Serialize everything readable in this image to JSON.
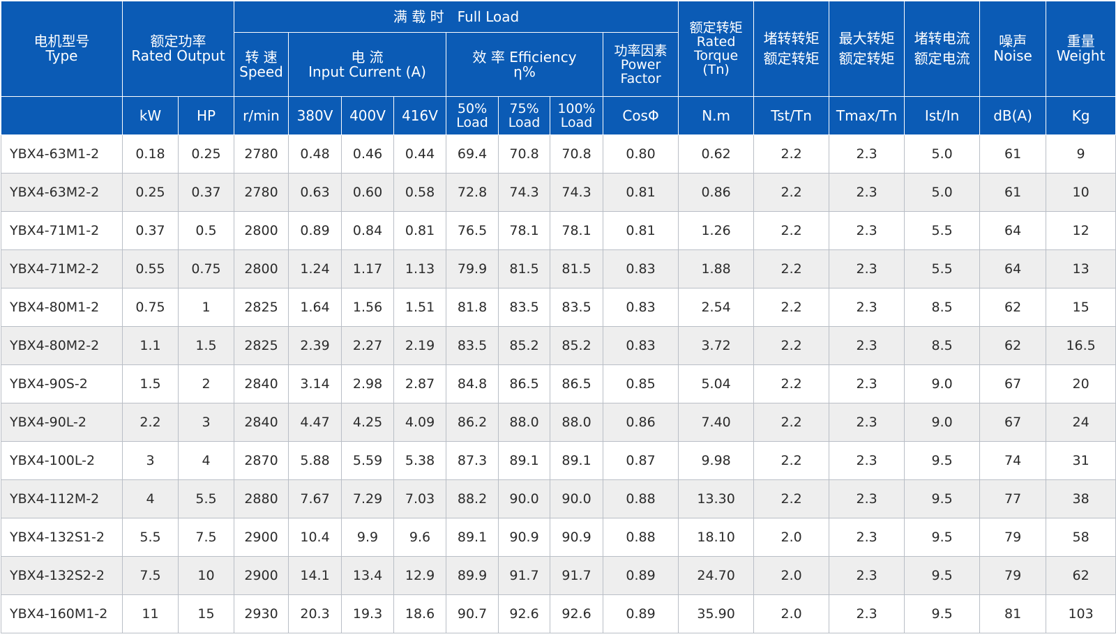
{
  "header": {
    "type": [
      "电机型号",
      "Type"
    ],
    "rated_output": [
      "额定功率",
      "Rated Output"
    ],
    "full_load": "满 载 时   Full Load",
    "speed": [
      "转 速",
      "Speed"
    ],
    "current": [
      "电 流",
      "Input Current (A)"
    ],
    "efficiency": [
      "效 率 Efficiency",
      "η%"
    ],
    "power_factor": [
      "功率因素",
      "Power",
      "Factor"
    ],
    "rated_torque": [
      "额定转矩",
      "Rated",
      "Torque",
      "(Tn)"
    ],
    "locked_torque": [
      "堵转转矩",
      "额定转矩"
    ],
    "max_torque": [
      "最大转矩",
      "额定转矩"
    ],
    "locked_current": [
      "堵转电流",
      "额定电流"
    ],
    "noise": [
      "噪声",
      "Noise"
    ],
    "weight": [
      "重量",
      "Weight"
    ],
    "units": {
      "kw": "kW",
      "hp": "HP",
      "rpm": "r/min",
      "v380": "380V",
      "v400": "400V",
      "v416": "416V",
      "l50": [
        "50%",
        "Load"
      ],
      "l75": [
        "75%",
        "Load"
      ],
      "l100": [
        "100%",
        "Load"
      ],
      "cos": "CosΦ",
      "nm": "N.m",
      "tst": "Tst/Tn",
      "tmax": "Tmax/Tn",
      "ist": "Ist/In",
      "db": "dB(A)",
      "kg": "Kg"
    }
  },
  "rows": [
    [
      "YBX4-63M1-2",
      "0.18",
      "0.25",
      "2780",
      "0.48",
      "0.46",
      "0.44",
      "69.4",
      "70.8",
      "70.8",
      "0.80",
      "0.62",
      "2.2",
      "2.3",
      "5.0",
      "61",
      "9"
    ],
    [
      "YBX4-63M2-2",
      "0.25",
      "0.37",
      "2780",
      "0.63",
      "0.60",
      "0.58",
      "72.8",
      "74.3",
      "74.3",
      "0.81",
      "0.86",
      "2.2",
      "2.3",
      "5.0",
      "61",
      "10"
    ],
    [
      "YBX4-71M1-2",
      "0.37",
      "0.5",
      "2800",
      "0.89",
      "0.84",
      "0.81",
      "76.5",
      "78.1",
      "78.1",
      "0.81",
      "1.26",
      "2.2",
      "2.3",
      "5.5",
      "64",
      "12"
    ],
    [
      "YBX4-71M2-2",
      "0.55",
      "0.75",
      "2800",
      "1.24",
      "1.17",
      "1.13",
      "79.9",
      "81.5",
      "81.5",
      "0.83",
      "1.88",
      "2.2",
      "2.3",
      "5.5",
      "64",
      "13"
    ],
    [
      "YBX4-80M1-2",
      "0.75",
      "1",
      "2825",
      "1.64",
      "1.56",
      "1.51",
      "81.8",
      "83.5",
      "83.5",
      "0.83",
      "2.54",
      "2.2",
      "2.3",
      "8.5",
      "62",
      "15"
    ],
    [
      "YBX4-80M2-2",
      "1.1",
      "1.5",
      "2825",
      "2.39",
      "2.27",
      "2.19",
      "83.5",
      "85.2",
      "85.2",
      "0.83",
      "3.72",
      "2.2",
      "2.3",
      "8.5",
      "62",
      "16.5"
    ],
    [
      "YBX4-90S-2",
      "1.5",
      "2",
      "2840",
      "3.14",
      "2.98",
      "2.87",
      "84.8",
      "86.5",
      "86.5",
      "0.85",
      "5.04",
      "2.2",
      "2.3",
      "9.0",
      "67",
      "20"
    ],
    [
      "YBX4-90L-2",
      "2.2",
      "3",
      "2840",
      "4.47",
      "4.25",
      "4.09",
      "86.2",
      "88.0",
      "88.0",
      "0.86",
      "7.40",
      "2.2",
      "2.3",
      "9.0",
      "67",
      "24"
    ],
    [
      "YBX4-100L-2",
      "3",
      "4",
      "2870",
      "5.88",
      "5.59",
      "5.38",
      "87.3",
      "89.1",
      "89.1",
      "0.87",
      "9.98",
      "2.2",
      "2.3",
      "9.5",
      "74",
      "31"
    ],
    [
      "YBX4-112M-2",
      "4",
      "5.5",
      "2880",
      "7.67",
      "7.29",
      "7.03",
      "88.2",
      "90.0",
      "90.0",
      "0.88",
      "13.30",
      "2.2",
      "2.3",
      "9.5",
      "77",
      "38"
    ],
    [
      "YBX4-132S1-2",
      "5.5",
      "7.5",
      "2900",
      "10.4",
      "9.9",
      "9.6",
      "89.1",
      "90.9",
      "90.9",
      "0.88",
      "18.10",
      "2.0",
      "2.3",
      "9.5",
      "79",
      "58"
    ],
    [
      "YBX4-132S2-2",
      "7.5",
      "10",
      "2900",
      "14.1",
      "13.4",
      "12.9",
      "89.9",
      "91.7",
      "91.7",
      "0.89",
      "24.70",
      "2.0",
      "2.3",
      "9.5",
      "79",
      "62"
    ],
    [
      "YBX4-160M1-2",
      "11",
      "15",
      "2930",
      "20.3",
      "19.3",
      "18.6",
      "90.7",
      "92.6",
      "92.6",
      "0.89",
      "35.90",
      "2.0",
      "2.3",
      "9.5",
      "81",
      "103"
    ]
  ]
}
